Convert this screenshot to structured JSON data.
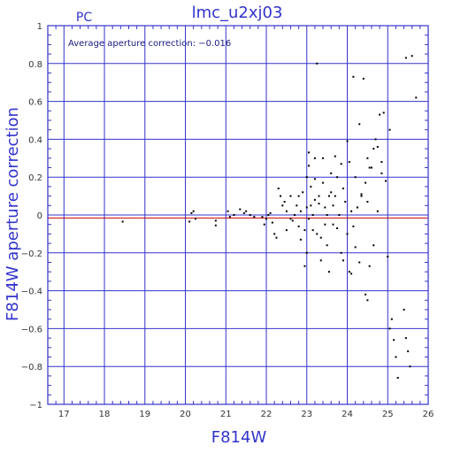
{
  "chart_data": {
    "type": "scatter",
    "title": "lmc_u2xj03",
    "corner_label": "PC",
    "annotation": "Average aperture correction: −0.016",
    "xlabel": "F814W",
    "ylabel": "F814W aperture correction",
    "xlim": [
      16.6,
      26
    ],
    "ylim": [
      -1,
      1
    ],
    "x_ticks": [
      "17",
      "18",
      "19",
      "20",
      "21",
      "22",
      "23",
      "24",
      "25",
      "26"
    ],
    "y_ticks": [
      "1",
      "0.8",
      "0.6",
      "0.4",
      "0.2",
      "0",
      "−0.2",
      "−0.4",
      "−0.6",
      "−0.8",
      "−1"
    ],
    "grid": true,
    "reference_line_y": 0,
    "mean_line_y": -0.016,
    "colors": {
      "axis": "#3333cc",
      "points": "#000000",
      "mean_line": "#cc0000",
      "text": "#3333cc"
    },
    "points": [
      [
        18.45,
        -0.035
      ],
      [
        20.1,
        -0.035
      ],
      [
        20.15,
        0.01
      ],
      [
        20.2,
        0.02
      ],
      [
        20.25,
        -0.02
      ],
      [
        20.75,
        -0.055
      ],
      [
        20.75,
        -0.03
      ],
      [
        21.05,
        0.02
      ],
      [
        21.1,
        -0.01
      ],
      [
        21.2,
        0.0
      ],
      [
        21.35,
        0.03
      ],
      [
        21.45,
        0.01
      ],
      [
        21.5,
        0.02
      ],
      [
        21.6,
        0.0
      ],
      [
        21.7,
        -0.01
      ],
      [
        21.9,
        -0.01
      ],
      [
        21.95,
        -0.05
      ],
      [
        22.0,
        -0.02
      ],
      [
        22.05,
        0.0
      ],
      [
        22.1,
        0.01
      ],
      [
        22.15,
        -0.04
      ],
      [
        22.2,
        -0.1
      ],
      [
        22.25,
        -0.12
      ],
      [
        22.3,
        0.14
      ],
      [
        22.35,
        0.1
      ],
      [
        22.4,
        0.05
      ],
      [
        22.45,
        0.07
      ],
      [
        22.5,
        0.02
      ],
      [
        22.5,
        -0.08
      ],
      [
        22.6,
        0.1
      ],
      [
        22.65,
        -0.03
      ],
      [
        22.7,
        0.0
      ],
      [
        22.75,
        0.05
      ],
      [
        22.8,
        0.1
      ],
      [
        22.8,
        -0.06
      ],
      [
        22.85,
        0.02
      ],
      [
        22.9,
        0.12
      ],
      [
        22.95,
        -0.08
      ],
      [
        22.95,
        -0.27
      ],
      [
        23.0,
        0.04
      ],
      [
        23.0,
        0.2
      ],
      [
        23.0,
        -0.2
      ],
      [
        23.05,
        0.33
      ],
      [
        23.05,
        0.26
      ],
      [
        23.1,
        0.15
      ],
      [
        23.1,
        0.05
      ],
      [
        23.15,
        0.0
      ],
      [
        23.15,
        -0.08
      ],
      [
        23.2,
        0.19
      ],
      [
        23.2,
        0.3
      ],
      [
        23.25,
        -0.1
      ],
      [
        23.25,
        0.8
      ],
      [
        23.3,
        0.1
      ],
      [
        23.3,
        0.06
      ],
      [
        23.35,
        -0.12
      ],
      [
        23.35,
        -0.24
      ],
      [
        23.4,
        0.3
      ],
      [
        23.4,
        0.17
      ],
      [
        23.45,
        0.04
      ],
      [
        23.5,
        0.0
      ],
      [
        23.5,
        -0.16
      ],
      [
        23.55,
        -0.3
      ],
      [
        23.6,
        0.22
      ],
      [
        23.6,
        0.12
      ],
      [
        23.65,
        0.05
      ],
      [
        23.65,
        -0.05
      ],
      [
        23.7,
        0.31
      ],
      [
        23.7,
        0.1
      ],
      [
        23.75,
        -0.07
      ],
      [
        23.8,
        0.0
      ],
      [
        23.85,
        0.27
      ],
      [
        23.85,
        -0.2
      ],
      [
        23.9,
        0.14
      ],
      [
        23.9,
        -0.24
      ],
      [
        23.95,
        0.07
      ],
      [
        24.0,
        0.39
      ],
      [
        24.0,
        -0.1
      ],
      [
        24.05,
        0.28
      ],
      [
        24.05,
        -0.3
      ],
      [
        24.1,
        -0.31
      ],
      [
        24.1,
        0.02
      ],
      [
        24.15,
        -0.06
      ],
      [
        24.2,
        0.2
      ],
      [
        24.25,
        0.04
      ],
      [
        24.3,
        0.48
      ],
      [
        24.3,
        -0.25
      ],
      [
        24.35,
        0.11
      ],
      [
        24.4,
        0.72
      ],
      [
        24.45,
        0.17
      ],
      [
        24.45,
        -0.42
      ],
      [
        24.5,
        0.3
      ],
      [
        24.5,
        -0.45
      ],
      [
        24.55,
        -0.27
      ],
      [
        24.6,
        0.25
      ],
      [
        24.65,
        0.35
      ],
      [
        24.65,
        -0.16
      ],
      [
        24.7,
        0.4
      ],
      [
        24.75,
        0.36
      ],
      [
        24.8,
        0.53
      ],
      [
        24.85,
        0.22
      ],
      [
        24.9,
        0.54
      ],
      [
        24.95,
        0.18
      ],
      [
        25.0,
        -0.22
      ],
      [
        25.05,
        0.45
      ],
      [
        25.05,
        -0.6
      ],
      [
        25.1,
        -0.55
      ],
      [
        25.15,
        -0.66
      ],
      [
        25.2,
        -0.75
      ],
      [
        25.25,
        -0.86
      ],
      [
        25.4,
        -0.5
      ],
      [
        25.45,
        -0.65
      ],
      [
        25.5,
        -0.72
      ],
      [
        25.55,
        -0.8
      ],
      [
        25.45,
        0.83
      ],
      [
        25.6,
        0.84
      ],
      [
        25.7,
        0.62
      ],
      [
        24.25,
        0.04
      ],
      [
        24.2,
        -0.17
      ],
      [
        24.35,
        0.1
      ],
      [
        24.75,
        0.02
      ],
      [
        23.45,
        -0.05
      ],
      [
        23.55,
        0.1
      ],
      [
        23.75,
        0.2
      ],
      [
        22.6,
        -0.02
      ],
      [
        22.85,
        -0.13
      ],
      [
        23.05,
        -0.02
      ],
      [
        23.2,
        0.08
      ],
      [
        24.5,
        0.07
      ],
      [
        24.15,
        0.73
      ],
      [
        24.55,
        0.25
      ],
      [
        24.85,
        0.28
      ]
    ]
  }
}
